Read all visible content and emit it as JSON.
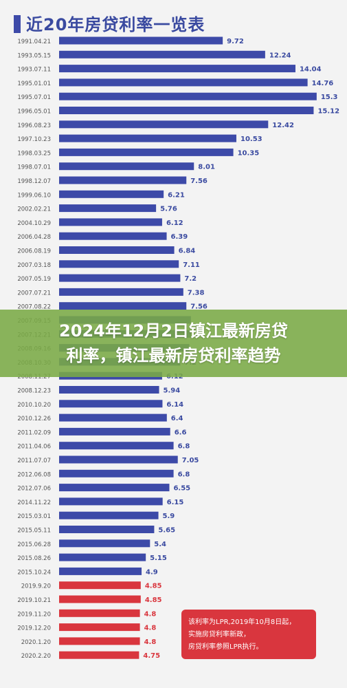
{
  "chart_data": {
    "type": "bar",
    "orientation": "horizontal",
    "title": "近20年房贷利率一览表",
    "categories": [
      "1991.04.21",
      "1993.05.15",
      "1993.07.11",
      "1995.01.01",
      "1995.07.01",
      "1996.05.01",
      "1996.08.23",
      "1997.10.23",
      "1998.03.25",
      "1998.07.01",
      "1998.12.07",
      "1999.06.10",
      "2002.02.21",
      "2004.10.29",
      "2006.04.28",
      "2006.08.19",
      "2007.03.18",
      "2007.05.19",
      "2007.07.21",
      "2007.08.22",
      "2007.09.15",
      "2007.12.21",
      "2008.09.16",
      "2008.10.30",
      "2008.11.27",
      "2008.12.23",
      "2010.10.20",
      "2010.12.26",
      "2011.02.09",
      "2011.04.06",
      "2011.07.07",
      "2012.06.08",
      "2012.07.06",
      "2014.11.22",
      "2015.03.01",
      "2015.05.11",
      "2015.06.28",
      "2015.08.26",
      "2015.10.24",
      "2019.9.20",
      "2019.10.21",
      "2019.11.20",
      "2019.12.20",
      "2020.1.20",
      "2020.2.20"
    ],
    "values": [
      9.72,
      12.24,
      14.04,
      14.76,
      15.3,
      15.12,
      12.42,
      10.53,
      10.35,
      8.01,
      7.56,
      6.21,
      5.76,
      6.12,
      6.39,
      6.84,
      7.11,
      7.2,
      7.38,
      7.56,
      7.83,
      7.83,
      7.74,
      7.2,
      6.12,
      5.94,
      6.14,
      6.4,
      6.6,
      6.8,
      7.05,
      6.8,
      6.55,
      6.15,
      5.9,
      5.65,
      5.4,
      5.15,
      4.9,
      4.85,
      4.85,
      4.8,
      4.8,
      4.8,
      4.75
    ],
    "value_labels": [
      "9.72",
      "12.24",
      "14.04",
      "14.76",
      "15.3",
      "15.12",
      "12.42",
      "10.53",
      "10.35",
      "8.01",
      "7.56",
      "6.21",
      "5.76",
      "6.12",
      "6.39",
      "6.84",
      "7.11",
      "7.2",
      "7.38",
      "7.56",
      "",
      "",
      "",
      "7.2",
      "6.12",
      "5.94",
      "6.14",
      "6.4",
      "6.6",
      "6.8",
      "7.05",
      "6.8",
      "6.55",
      "6.15",
      "5.9",
      "5.65",
      "5.4",
      "5.15",
      "4.9",
      "4.85",
      "4.85",
      "4.8",
      "4.8",
      "4.8",
      "4.75"
    ],
    "highlight_from_index": 39,
    "xlim": [
      0,
      16
    ],
    "grid": false,
    "colors": {
      "base": "#3d4aa8",
      "lpr": "#d9363e",
      "label": "#3a4aa0",
      "date": "#555555"
    }
  },
  "overlay": {
    "line1": "2024年12月2日镇江最新房贷",
    "line2": "利率，镇江最新房贷利率趋势"
  },
  "note": {
    "line1": "该利率为LPR,2019年10月8日起，",
    "line2": "实施房贷利率新政，",
    "line3": "房贷利率参照LPR执行。"
  }
}
